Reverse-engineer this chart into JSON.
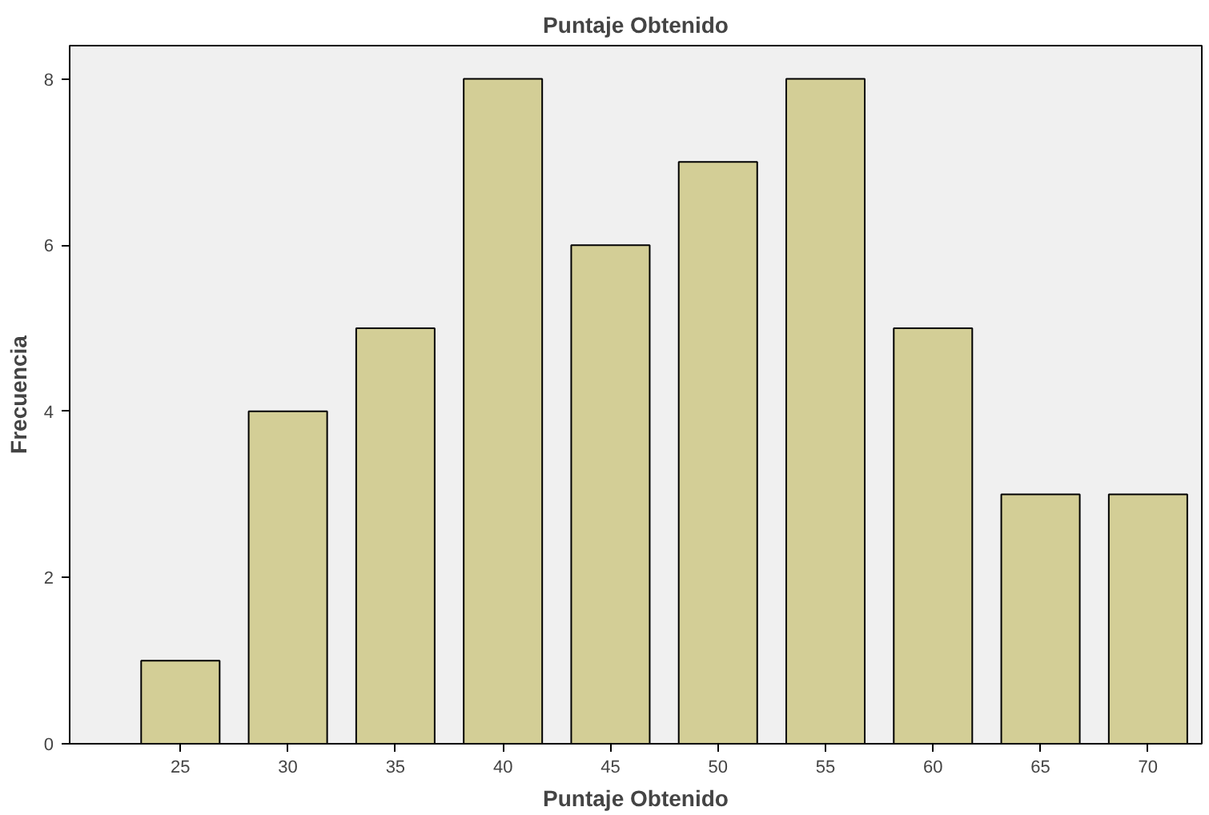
{
  "chart_data": {
    "type": "bar",
    "title": "Puntaje Obtenido",
    "xlabel": "Puntaje Obtenido",
    "ylabel": "Frecuencia",
    "categories": [
      "25",
      "30",
      "35",
      "40",
      "45",
      "50",
      "55",
      "60",
      "65",
      "70"
    ],
    "values": [
      1,
      4,
      5,
      8,
      6,
      7,
      8,
      5,
      3,
      3
    ],
    "color": "#d3ce96",
    "ylim": [
      0,
      8.4
    ],
    "yticks": [
      0,
      2,
      4,
      6,
      8
    ],
    "grid": false
  }
}
